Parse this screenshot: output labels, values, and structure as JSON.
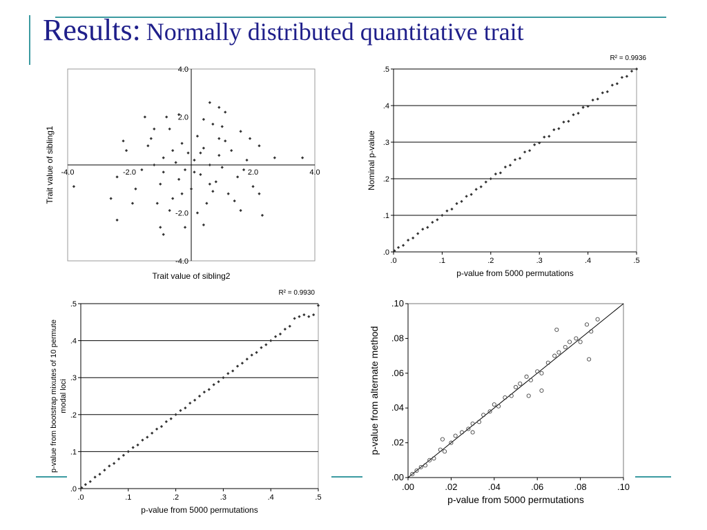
{
  "title": {
    "main": "Results:",
    "sub": "Normally distributed quantitative trait"
  },
  "colors": {
    "title": "#1f1f8a",
    "accent": "#3a9aa0",
    "points": "#333333"
  },
  "chart_data": [
    {
      "type": "scatter",
      "xlabel": "Trait value of sibling2",
      "ylabel": "Trait value of sibling1",
      "xlim": [
        -4,
        4
      ],
      "ylim": [
        -4,
        4
      ],
      "xticks": [
        "-4.0",
        "-2.0",
        "2.0",
        "4.0"
      ],
      "yticks": [
        "4.0",
        "2.0",
        "-2.0",
        "-4.0"
      ],
      "grid": false,
      "points": [
        [
          -2.1,
          0.6
        ],
        [
          -1.6,
          -0.2
        ],
        [
          -1.3,
          1.1
        ],
        [
          -1.0,
          -0.8
        ],
        [
          -0.9,
          0.3
        ],
        [
          -0.7,
          1.5
        ],
        [
          -0.6,
          -1.4
        ],
        [
          -0.5,
          0.1
        ],
        [
          -0.4,
          -0.6
        ],
        [
          -0.3,
          0.9
        ],
        [
          -0.2,
          -0.2
        ],
        [
          -0.1,
          0.5
        ],
        [
          0.0,
          -1.0
        ],
        [
          0.1,
          0.2
        ],
        [
          0.2,
          1.2
        ],
        [
          0.3,
          -0.4
        ],
        [
          0.4,
          0.7
        ],
        [
          0.5,
          -1.6
        ],
        [
          0.6,
          0.0
        ],
        [
          0.7,
          1.7
        ],
        [
          0.8,
          -0.7
        ],
        [
          0.9,
          0.4
        ],
        [
          1.0,
          -0.1
        ],
        [
          1.1,
          1.0
        ],
        [
          1.2,
          -1.2
        ],
        [
          1.3,
          0.6
        ],
        [
          1.5,
          -0.5
        ],
        [
          1.6,
          1.4
        ],
        [
          1.8,
          0.2
        ],
        [
          2.0,
          -0.9
        ],
        [
          2.2,
          0.8
        ],
        [
          -1.8,
          -1.0
        ],
        [
          -1.4,
          0.8
        ],
        [
          -1.1,
          -1.6
        ],
        [
          -0.8,
          2.0
        ],
        [
          -0.6,
          0.6
        ],
        [
          -0.3,
          -1.2
        ],
        [
          0.2,
          -2.0
        ],
        [
          0.4,
          1.9
        ],
        [
          0.7,
          -1.1
        ],
        [
          1.0,
          1.6
        ],
        [
          1.4,
          -1.5
        ],
        [
          -2.4,
          -0.5
        ],
        [
          -1.2,
          0.0
        ],
        [
          0.1,
          -0.3
        ],
        [
          0.9,
          1.1
        ],
        [
          1.7,
          -0.2
        ],
        [
          -0.9,
          -0.3
        ],
        [
          0.3,
          0.5
        ],
        [
          0.6,
          -0.8
        ],
        [
          -2.6,
          -1.4
        ],
        [
          -2.4,
          -2.3
        ],
        [
          -1.9,
          -1.6
        ],
        [
          -1.0,
          -2.6
        ],
        [
          -0.9,
          -2.9
        ],
        [
          -0.2,
          -2.6
        ],
        [
          0.6,
          2.6
        ],
        [
          1.1,
          2.2
        ],
        [
          2.3,
          -2.1
        ],
        [
          2.7,
          0.3
        ],
        [
          3.6,
          0.3
        ],
        [
          -3.8,
          -0.9
        ],
        [
          2.2,
          -1.2
        ],
        [
          -0.4,
          2.1
        ],
        [
          -1.5,
          2.0
        ],
        [
          0.9,
          2.4
        ],
        [
          1.9,
          1.1
        ],
        [
          -2.2,
          1.0
        ],
        [
          -0.7,
          -1.9
        ],
        [
          0.4,
          -2.5
        ],
        [
          1.6,
          -1.9
        ],
        [
          -1.2,
          1.5
        ]
      ]
    },
    {
      "type": "scatter",
      "xlabel": "p-value from 5000 permutations",
      "ylabel": "Nominal p-value",
      "annotation": "R² = 0.9936",
      "xlim": [
        0,
        0.5
      ],
      "ylim": [
        0,
        0.5
      ],
      "xticks": [
        ".0",
        ".1",
        ".2",
        ".3",
        ".4",
        ".5"
      ],
      "yticks": [
        ".0",
        ".1",
        ".2",
        ".3",
        ".4",
        ".5"
      ],
      "grid": true,
      "points": [
        [
          0.002,
          0.003
        ],
        [
          0.01,
          0.012
        ],
        [
          0.02,
          0.018
        ],
        [
          0.03,
          0.032
        ],
        [
          0.04,
          0.038
        ],
        [
          0.05,
          0.05
        ],
        [
          0.06,
          0.062
        ],
        [
          0.07,
          0.067
        ],
        [
          0.08,
          0.081
        ],
        [
          0.09,
          0.088
        ],
        [
          0.1,
          0.1
        ],
        [
          0.11,
          0.112
        ],
        [
          0.12,
          0.117
        ],
        [
          0.13,
          0.132
        ],
        [
          0.14,
          0.138
        ],
        [
          0.15,
          0.152
        ],
        [
          0.16,
          0.157
        ],
        [
          0.17,
          0.171
        ],
        [
          0.18,
          0.178
        ],
        [
          0.19,
          0.191
        ],
        [
          0.2,
          0.2
        ],
        [
          0.21,
          0.213
        ],
        [
          0.22,
          0.216
        ],
        [
          0.23,
          0.232
        ],
        [
          0.24,
          0.237
        ],
        [
          0.25,
          0.252
        ],
        [
          0.26,
          0.256
        ],
        [
          0.27,
          0.273
        ],
        [
          0.28,
          0.277
        ],
        [
          0.29,
          0.293
        ],
        [
          0.3,
          0.298
        ],
        [
          0.31,
          0.314
        ],
        [
          0.32,
          0.316
        ],
        [
          0.33,
          0.334
        ],
        [
          0.34,
          0.337
        ],
        [
          0.35,
          0.355
        ],
        [
          0.36,
          0.357
        ],
        [
          0.37,
          0.375
        ],
        [
          0.38,
          0.379
        ],
        [
          0.39,
          0.395
        ],
        [
          0.4,
          0.398
        ],
        [
          0.41,
          0.415
        ],
        [
          0.42,
          0.418
        ],
        [
          0.43,
          0.435
        ],
        [
          0.44,
          0.438
        ],
        [
          0.45,
          0.456
        ],
        [
          0.46,
          0.46
        ],
        [
          0.47,
          0.477
        ],
        [
          0.48,
          0.48
        ],
        [
          0.49,
          0.494
        ],
        [
          0.5,
          0.5
        ]
      ],
      "fit_line": false
    },
    {
      "type": "scatter",
      "xlabel": "p-value from 5000 permutations",
      "ylabel": "p-value from bootstrap mixutes of 10 permute modal loci",
      "annotation": "R² = 0.9930",
      "xlim": [
        0,
        0.5
      ],
      "ylim": [
        0,
        0.5
      ],
      "xticks": [
        ".0",
        ".1",
        ".2",
        ".3",
        ".4",
        ".5"
      ],
      "yticks": [
        ".0",
        ".1",
        ".2",
        ".3",
        ".4",
        ".5"
      ],
      "grid": true,
      "points": [
        [
          0.002,
          0.002
        ],
        [
          0.01,
          0.011
        ],
        [
          0.02,
          0.019
        ],
        [
          0.03,
          0.031
        ],
        [
          0.04,
          0.039
        ],
        [
          0.05,
          0.05
        ],
        [
          0.06,
          0.061
        ],
        [
          0.07,
          0.068
        ],
        [
          0.08,
          0.08
        ],
        [
          0.09,
          0.09
        ],
        [
          0.1,
          0.1
        ],
        [
          0.11,
          0.111
        ],
        [
          0.12,
          0.118
        ],
        [
          0.13,
          0.131
        ],
        [
          0.14,
          0.139
        ],
        [
          0.15,
          0.15
        ],
        [
          0.16,
          0.161
        ],
        [
          0.17,
          0.168
        ],
        [
          0.18,
          0.181
        ],
        [
          0.19,
          0.189
        ],
        [
          0.2,
          0.2
        ],
        [
          0.21,
          0.211
        ],
        [
          0.22,
          0.218
        ],
        [
          0.23,
          0.231
        ],
        [
          0.24,
          0.239
        ],
        [
          0.25,
          0.25
        ],
        [
          0.26,
          0.261
        ],
        [
          0.27,
          0.268
        ],
        [
          0.28,
          0.281
        ],
        [
          0.29,
          0.289
        ],
        [
          0.3,
          0.3
        ],
        [
          0.31,
          0.311
        ],
        [
          0.32,
          0.318
        ],
        [
          0.33,
          0.331
        ],
        [
          0.34,
          0.339
        ],
        [
          0.35,
          0.35
        ],
        [
          0.36,
          0.361
        ],
        [
          0.37,
          0.368
        ],
        [
          0.38,
          0.381
        ],
        [
          0.39,
          0.389
        ],
        [
          0.4,
          0.4
        ],
        [
          0.41,
          0.411
        ],
        [
          0.42,
          0.418
        ],
        [
          0.43,
          0.431
        ],
        [
          0.44,
          0.439
        ],
        [
          0.45,
          0.46
        ],
        [
          0.46,
          0.465
        ],
        [
          0.47,
          0.47
        ],
        [
          0.48,
          0.465
        ],
        [
          0.49,
          0.47
        ],
        [
          0.5,
          0.495
        ]
      ]
    },
    {
      "type": "scatter",
      "xlabel": "p-value from 5000 permutations",
      "ylabel": "p-value from alternate method",
      "xlim": [
        0,
        0.1
      ],
      "ylim": [
        0,
        0.1
      ],
      "xticks": [
        ".00",
        ".02",
        ".04",
        ".06",
        ".08",
        ".10"
      ],
      "yticks": [
        ".00",
        ".02",
        ".04",
        ".06",
        ".08",
        ".10"
      ],
      "grid": false,
      "fit_line": true,
      "points": [
        [
          0.002,
          0.002
        ],
        [
          0.004,
          0.004
        ],
        [
          0.006,
          0.006
        ],
        [
          0.008,
          0.007
        ],
        [
          0.01,
          0.01
        ],
        [
          0.012,
          0.011
        ],
        [
          0.015,
          0.016
        ],
        [
          0.017,
          0.015
        ],
        [
          0.02,
          0.02
        ],
        [
          0.022,
          0.024
        ],
        [
          0.025,
          0.026
        ],
        [
          0.028,
          0.028
        ],
        [
          0.03,
          0.031
        ],
        [
          0.033,
          0.032
        ],
        [
          0.035,
          0.036
        ],
        [
          0.038,
          0.038
        ],
        [
          0.04,
          0.042
        ],
        [
          0.042,
          0.041
        ],
        [
          0.045,
          0.046
        ],
        [
          0.048,
          0.047
        ],
        [
          0.05,
          0.052
        ],
        [
          0.052,
          0.054
        ],
        [
          0.055,
          0.058
        ],
        [
          0.057,
          0.056
        ],
        [
          0.06,
          0.061
        ],
        [
          0.062,
          0.06
        ],
        [
          0.065,
          0.066
        ],
        [
          0.068,
          0.07
        ],
        [
          0.07,
          0.072
        ],
        [
          0.073,
          0.075
        ],
        [
          0.075,
          0.078
        ],
        [
          0.078,
          0.08
        ],
        [
          0.08,
          0.078
        ],
        [
          0.083,
          0.088
        ],
        [
          0.085,
          0.084
        ],
        [
          0.088,
          0.091
        ],
        [
          0.016,
          0.022
        ],
        [
          0.03,
          0.026
        ],
        [
          0.056,
          0.047
        ],
        [
          0.062,
          0.05
        ],
        [
          0.084,
          0.068
        ],
        [
          0.069,
          0.085
        ]
      ]
    }
  ]
}
